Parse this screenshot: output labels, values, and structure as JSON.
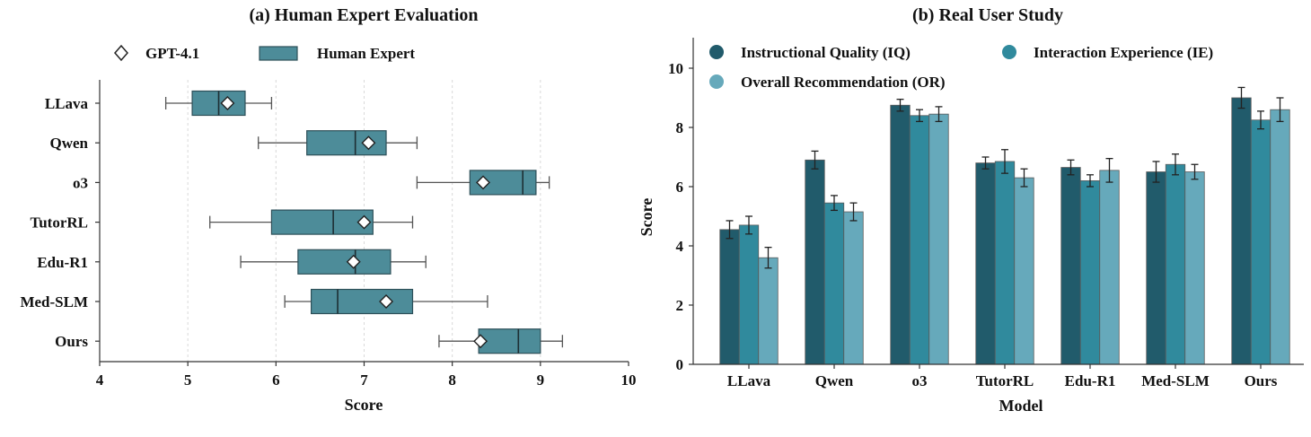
{
  "colors": {
    "box_fill": "#4d8c99",
    "box_edge": "#2d4f58",
    "iq": "#215b6b",
    "ie": "#308a9d",
    "or": "#66a9bb"
  },
  "chart_data": [
    {
      "type": "box",
      "title": "(a) Human Expert Evaluation",
      "xlabel": "Score",
      "ylabel": "",
      "xlim": [
        4,
        10
      ],
      "xticks": [
        "4",
        "5",
        "6",
        "7",
        "8",
        "9",
        "10"
      ],
      "grid": "vertical dashed",
      "legend": [
        "GPT-4.1",
        "Human Expert"
      ],
      "legend_placement": "top",
      "categories": [
        "LLava",
        "Qwen",
        "o3",
        "TutorRL",
        "Edu-R1",
        "Med-SLM",
        "Ours"
      ],
      "human_expert": [
        {
          "min": 4.75,
          "q1": 5.05,
          "median": 5.35,
          "q3": 5.65,
          "max": 5.95
        },
        {
          "min": 5.8,
          "q1": 6.35,
          "median": 6.9,
          "q3": 7.25,
          "max": 7.6
        },
        {
          "min": 7.6,
          "q1": 8.2,
          "median": 8.8,
          "q3": 8.95,
          "max": 9.1
        },
        {
          "min": 5.25,
          "q1": 5.95,
          "median": 6.65,
          "q3": 7.1,
          "max": 7.55
        },
        {
          "min": 5.6,
          "q1": 6.25,
          "median": 6.9,
          "q3": 7.3,
          "max": 7.7
        },
        {
          "min": 6.1,
          "q1": 6.4,
          "median": 6.7,
          "q3": 7.55,
          "max": 8.4
        },
        {
          "min": 7.85,
          "q1": 8.3,
          "median": 8.75,
          "q3": 9.0,
          "max": 9.25
        }
      ],
      "gpt41": [
        5.45,
        7.05,
        8.35,
        7.0,
        6.88,
        7.25,
        8.32
      ]
    },
    {
      "type": "bar",
      "title": "(b) Real User Study",
      "xlabel": "Model",
      "ylabel": "Score",
      "ylim": [
        0,
        10
      ],
      "yticks": [
        "0",
        "2",
        "4",
        "6",
        "8",
        "10"
      ],
      "legend_placement": "top-left",
      "categories": [
        "LLava",
        "Qwen",
        "o3",
        "TutorRL",
        "Edu-R1",
        "Med-SLM",
        "Ours"
      ],
      "series": [
        {
          "name": "Instructional Quality (IQ)",
          "values": [
            4.55,
            6.9,
            8.75,
            6.8,
            6.65,
            6.5,
            9.0
          ],
          "errors": [
            0.3,
            0.3,
            0.2,
            0.2,
            0.25,
            0.35,
            0.35
          ]
        },
        {
          "name": "Interaction Experience (IE)",
          "values": [
            4.7,
            5.45,
            8.4,
            6.85,
            6.2,
            6.75,
            8.25
          ],
          "errors": [
            0.3,
            0.25,
            0.2,
            0.4,
            0.2,
            0.35,
            0.3
          ]
        },
        {
          "name": "Overall Recommendation (OR)",
          "values": [
            3.6,
            5.15,
            8.45,
            6.3,
            6.55,
            6.5,
            8.6
          ],
          "errors": [
            0.35,
            0.3,
            0.25,
            0.3,
            0.4,
            0.25,
            0.4
          ]
        }
      ]
    }
  ]
}
